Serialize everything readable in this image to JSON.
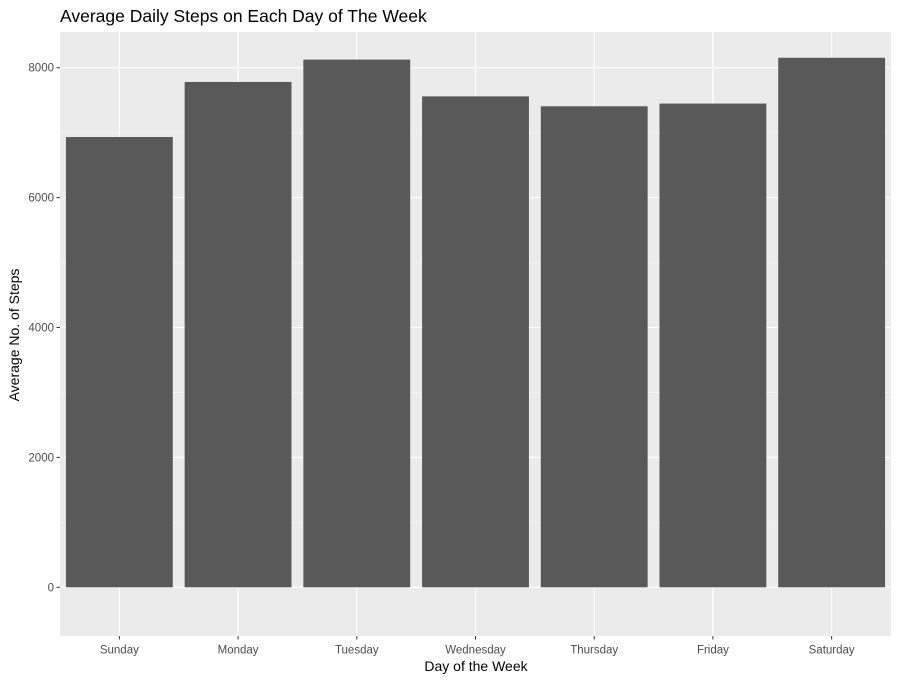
{
  "chart_data": {
    "type": "bar",
    "title": "Average Daily Steps on Each Day of The Week",
    "xlabel": "Day of the Week",
    "ylabel": "Average No. of Steps",
    "categories": [
      "Sunday",
      "Monday",
      "Tuesday",
      "Wednesday",
      "Thursday",
      "Friday",
      "Saturday"
    ],
    "values": [
      6933,
      7781,
      8125,
      7559,
      7406,
      7448,
      8153
    ],
    "ylim": [
      -750,
      8550
    ],
    "yticks": [
      0,
      2000,
      4000,
      6000,
      8000
    ],
    "ytick_labels": [
      "0",
      "2000",
      "4000",
      "6000",
      "8000"
    ],
    "grid": true,
    "legend": "none",
    "colors": {
      "panel_background": "#ebebeb",
      "grid_major": "#ffffff",
      "grid_minor": "#f5f5f5",
      "bar_fill": "#595959",
      "tick_text": "#4d4d4d",
      "tick_mark": "#333333",
      "text": "#000000"
    }
  }
}
